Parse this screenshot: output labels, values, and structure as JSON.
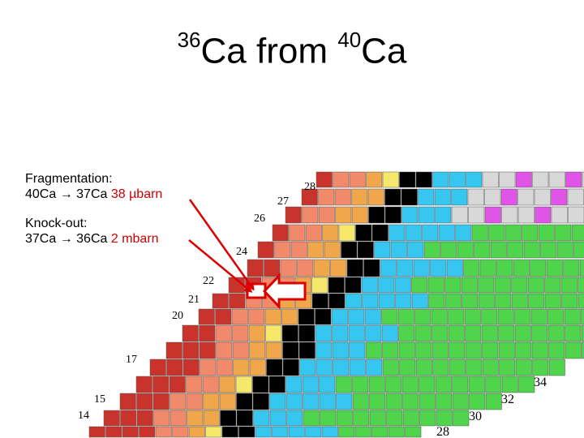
{
  "slide": {
    "title_mass_a": "36",
    "title_elem_a": "Ca",
    "title_from": "from",
    "title_mass_b": "40",
    "title_elem_b": "Ca"
  },
  "notes": {
    "frag_heading": "Fragmentation:",
    "frag_reaction": "40Ca → 37Ca",
    "frag_value": "38 µbarn",
    "ko_heading": "Knock-out:",
    "ko_reaction": "37Ca → 36Ca",
    "ko_value": "2 mbarn"
  },
  "chart_labels": {
    "proton_numbers": [
      "28",
      "27",
      "26",
      "24",
      "22",
      "21",
      "20",
      "17",
      "15",
      "14"
    ],
    "neutron_numbers": [
      "34",
      "32",
      "30",
      "28"
    ]
  },
  "colors": {
    "stable": "#000000",
    "beta_minus": "#35c7f0",
    "beta_plus": "#f08a6a",
    "proton_emitter": "#c8342c",
    "alpha": "#f5e86a",
    "green": "#4fd44c",
    "ec": "#f0a64a",
    "pink": "#e054e8",
    "arrow": "#dd0000"
  }
}
